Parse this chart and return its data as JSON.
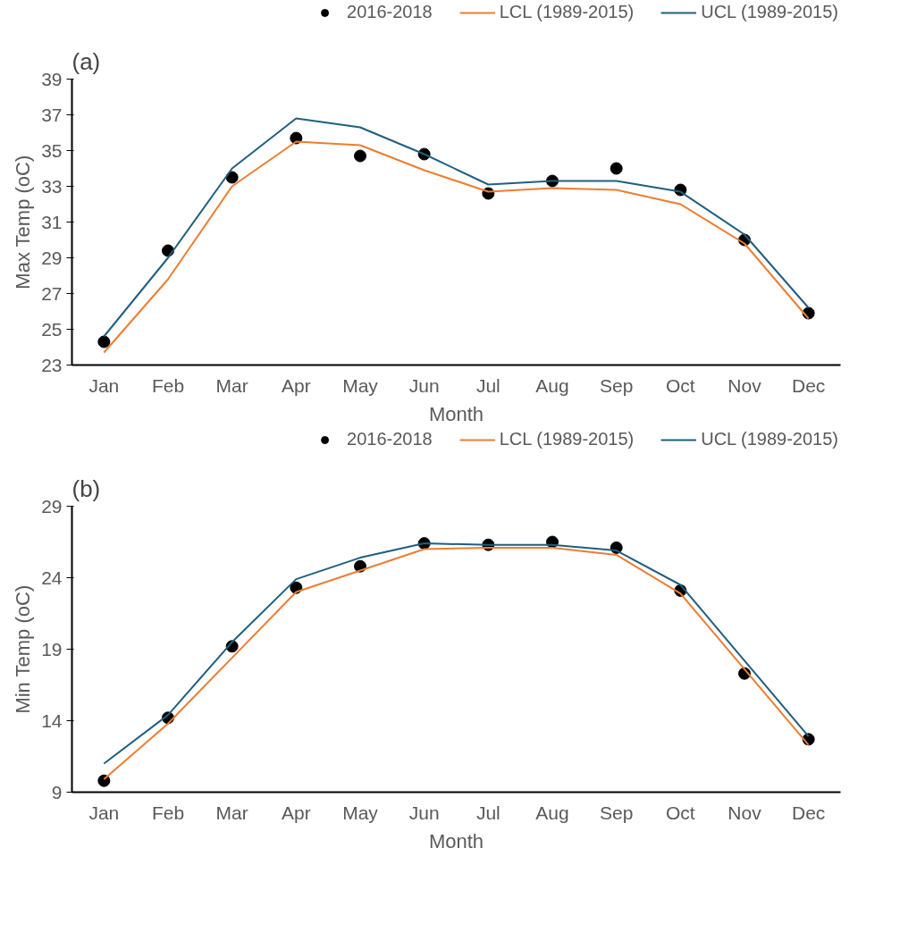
{
  "chart_data": [
    {
      "type": "line",
      "title": "(a)",
      "xlabel": "Month",
      "ylabel": "Max Temp (oC)",
      "categories": [
        "Jan",
        "Feb",
        "Mar",
        "Apr",
        "May",
        "Jun",
        "Jul",
        "Aug",
        "Sep",
        "Oct",
        "Nov",
        "Dec"
      ],
      "ylim": [
        23,
        39
      ],
      "yticks": [
        23,
        25,
        27,
        29,
        31,
        33,
        35,
        37,
        39
      ],
      "grid": false,
      "legend": "top",
      "series": [
        {
          "name": "2016-2018",
          "type": "scatter",
          "marker": "circle",
          "color": "#000000",
          "values": [
            24.3,
            29.4,
            33.5,
            35.7,
            34.7,
            34.8,
            32.6,
            33.3,
            34.0,
            32.8,
            30.0,
            25.9
          ]
        },
        {
          "name": "LCL (1989-2015)",
          "color": "#ed7d31",
          "values": [
            23.7,
            27.8,
            33.0,
            35.5,
            35.3,
            33.9,
            32.7,
            32.9,
            32.8,
            32.0,
            29.8,
            25.6
          ]
        },
        {
          "name": "UCL (1989-2015)",
          "color": "#1f5f7f",
          "values": [
            24.6,
            29.0,
            34.0,
            36.8,
            36.3,
            34.8,
            33.1,
            33.3,
            33.3,
            32.7,
            30.3,
            26.2
          ]
        }
      ]
    },
    {
      "type": "line",
      "title": "(b)",
      "xlabel": "Month",
      "ylabel": "Min Temp (oC)",
      "categories": [
        "Jan",
        "Feb",
        "Mar",
        "Apr",
        "May",
        "Jun",
        "Jul",
        "Aug",
        "Sep",
        "Oct",
        "Nov",
        "Dec"
      ],
      "ylim": [
        9,
        29
      ],
      "yticks": [
        9,
        14,
        19,
        24,
        29
      ],
      "grid": false,
      "legend": "top",
      "series": [
        {
          "name": "2016-2018",
          "type": "scatter",
          "marker": "circle",
          "color": "#000000",
          "values": [
            9.8,
            14.2,
            19.2,
            23.3,
            24.8,
            26.4,
            26.3,
            26.5,
            26.1,
            23.1,
            17.3,
            12.7
          ]
        },
        {
          "name": "LCL (1989-2015)",
          "color": "#ed7d31",
          "values": [
            9.9,
            13.8,
            18.4,
            23.0,
            24.5,
            26.0,
            26.1,
            26.1,
            25.6,
            22.9,
            17.6,
            12.3
          ]
        },
        {
          "name": "UCL (1989-2015)",
          "color": "#1f5f7f",
          "values": [
            11.0,
            14.4,
            19.5,
            23.9,
            25.4,
            26.4,
            26.3,
            26.3,
            25.9,
            23.5,
            18.2,
            12.9
          ]
        }
      ]
    }
  ]
}
